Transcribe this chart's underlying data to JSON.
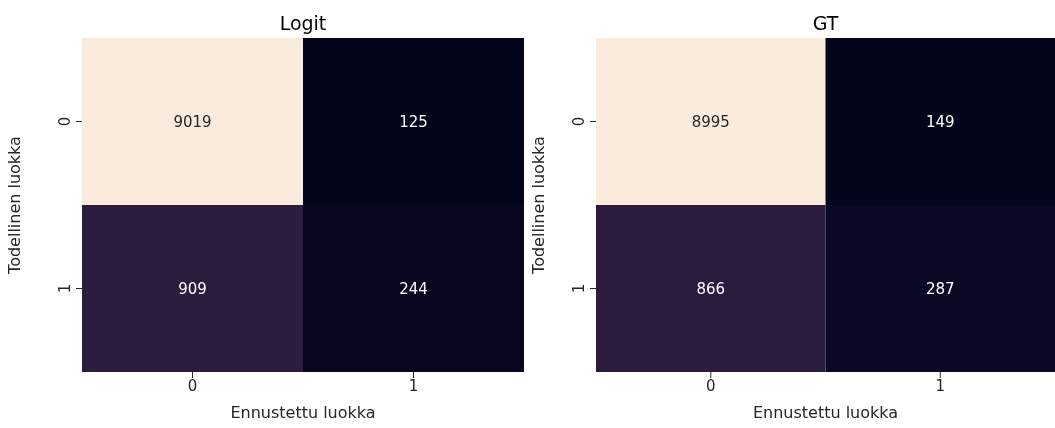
{
  "chart_data": [
    {
      "type": "heatmap",
      "title": "Logit",
      "xlabel": "Ennustettu luokka",
      "ylabel": "Todellinen luokka",
      "categories": [
        "0",
        "1"
      ],
      "y_categories": [
        "0",
        "1"
      ],
      "cells": [
        [
          9019,
          125
        ],
        [
          909,
          244
        ]
      ],
      "colors": [
        [
          "#faebdd",
          "#03051a"
        ],
        [
          "#2b1b3c",
          "#08071f"
        ]
      ],
      "data_labels": true
    },
    {
      "type": "heatmap",
      "title": "GT",
      "xlabel": "Ennustettu luokka",
      "ylabel": "Todellinen luokka",
      "categories": [
        "0",
        "1"
      ],
      "y_categories": [
        "0",
        "1"
      ],
      "cells": [
        [
          8995,
          149
        ],
        [
          866,
          287
        ]
      ],
      "colors": [
        [
          "#faebdd",
          "#03051a"
        ],
        [
          "#2b1b3c",
          "#0a0822"
        ]
      ],
      "data_labels": true
    }
  ]
}
